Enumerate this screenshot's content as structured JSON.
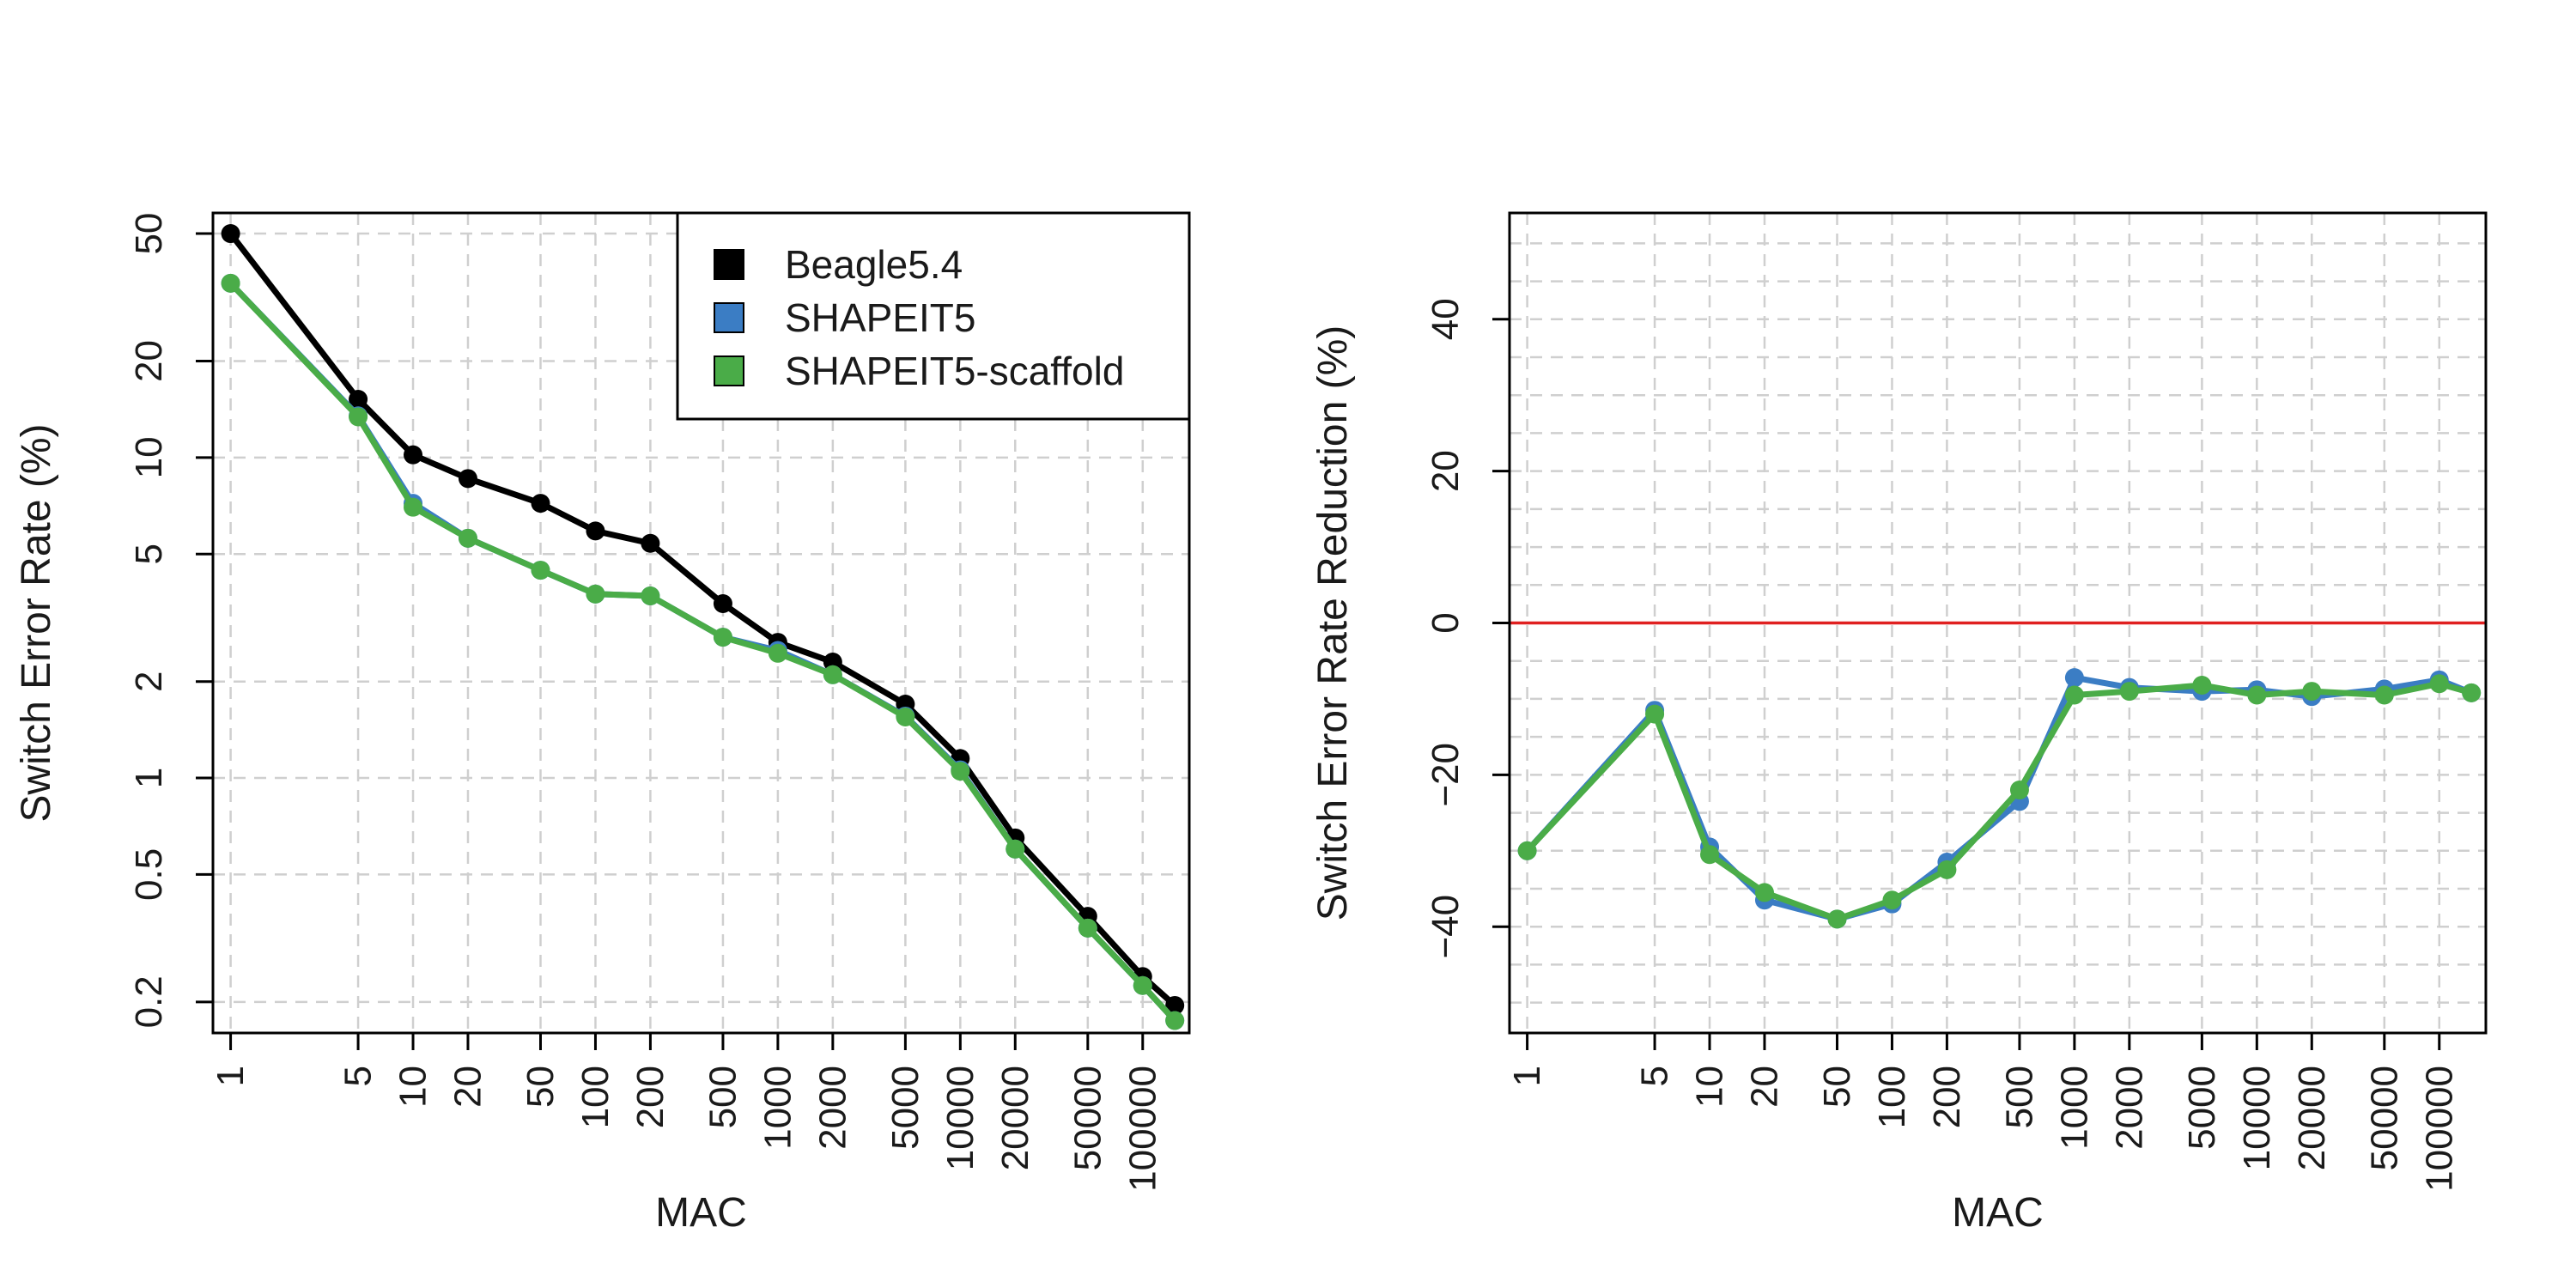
{
  "chart_data": [
    {
      "type": "line",
      "title": "",
      "xlabel": "MAC",
      "ylabel": "Switch Error Rate (%)",
      "x_scale": "log",
      "y_scale": "log",
      "xlim": [
        0.8,
        180000
      ],
      "ylim": [
        0.16,
        58
      ],
      "grid": true,
      "legend_position": "top-right",
      "x": [
        1,
        5,
        10,
        20,
        50,
        100,
        200,
        500,
        1000,
        2000,
        5000,
        10000,
        20000,
        50000,
        100000,
        150000
      ],
      "xtick_values": [
        1,
        5,
        10,
        20,
        50,
        100,
        200,
        500,
        1000,
        2000,
        5000,
        10000,
        20000,
        50000,
        100000
      ],
      "xtick_labels": [
        "1",
        "5",
        "10",
        "20",
        "50",
        "100",
        "200",
        "500",
        "1000",
        "2000",
        "5000",
        "10000",
        "20000",
        "50000",
        "100000"
      ],
      "ytick_values": [
        0.2,
        0.5,
        1,
        2,
        5,
        10,
        20,
        50
      ],
      "ytick_labels": [
        "0.2",
        "0.5",
        "1",
        "2",
        "5",
        "10",
        "20",
        "50"
      ],
      "series": [
        {
          "name": "Beagle5.4",
          "color": "#000000",
          "values": [
            50,
            15.2,
            10.2,
            8.6,
            7.2,
            5.9,
            5.4,
            3.5,
            2.65,
            2.3,
            1.7,
            1.15,
            0.65,
            0.37,
            0.24,
            0.195
          ]
        },
        {
          "name": "SHAPEIT5",
          "color": "#3b7dc4",
          "values": [
            35,
            13.5,
            7.2,
            5.6,
            4.45,
            3.75,
            3.7,
            2.75,
            2.5,
            2.1,
            1.56,
            1.06,
            0.6,
            0.34,
            0.225,
            0.175
          ]
        },
        {
          "name": "SHAPEIT5-scaffold",
          "color": "#4aac48",
          "values": [
            35,
            13.4,
            7.0,
            5.6,
            4.45,
            3.75,
            3.7,
            2.75,
            2.45,
            2.1,
            1.55,
            1.05,
            0.6,
            0.34,
            0.225,
            0.175
          ]
        }
      ]
    },
    {
      "type": "line",
      "title": "",
      "xlabel": "MAC",
      "ylabel": "Switch Error Rate Reduction (%)",
      "x_scale": "log",
      "y_scale": "linear",
      "xlim": [
        0.8,
        180000
      ],
      "ylim": [
        -54,
        54
      ],
      "grid": true,
      "reference_line": {
        "y": 0,
        "color": "#e02020"
      },
      "x": [
        1,
        5,
        10,
        20,
        50,
        100,
        200,
        500,
        1000,
        2000,
        5000,
        10000,
        20000,
        50000,
        100000,
        150000
      ],
      "xtick_values": [
        1,
        5,
        10,
        20,
        50,
        100,
        200,
        500,
        1000,
        2000,
        5000,
        10000,
        20000,
        50000,
        100000
      ],
      "xtick_labels": [
        "1",
        "5",
        "10",
        "20",
        "50",
        "100",
        "200",
        "500",
        "1000",
        "2000",
        "5000",
        "10000",
        "20000",
        "50000",
        "100000"
      ],
      "ytick_values": [
        -40,
        -20,
        0,
        20,
        40
      ],
      "ytick_labels": [
        "−40",
        "−20",
        "0",
        "20",
        "40"
      ],
      "series": [
        {
          "name": "SHAPEIT5",
          "color": "#3b7dc4",
          "values": [
            -30,
            -11.5,
            -29.5,
            -36.5,
            -39,
            -37,
            -31.5,
            -23.5,
            -7.2,
            -8.5,
            -9,
            -8.8,
            -9.7,
            -8.7,
            -7.5,
            -9.2
          ]
        },
        {
          "name": "SHAPEIT5-scaffold",
          "color": "#4aac48",
          "values": [
            -30,
            -12,
            -30.5,
            -35.5,
            -39,
            -36.5,
            -32.5,
            -22,
            -9.5,
            -9,
            -8.2,
            -9.5,
            -9,
            -9.5,
            -8,
            -9.2
          ]
        }
      ]
    }
  ]
}
